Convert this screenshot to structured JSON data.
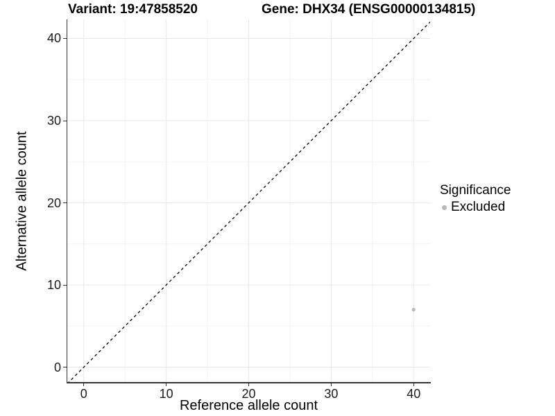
{
  "header": {
    "variant_title": "Variant: 19:47858520",
    "gene_title": "Gene: DHX34 (ENSG00000134815)"
  },
  "legend": {
    "title": "Significance",
    "items": [
      {
        "label": "Excluded",
        "color": "#b9b9b9"
      }
    ]
  },
  "chart_data": {
    "type": "scatter",
    "title_left": "Variant: 19:47858520",
    "title_right": "Gene: DHX34 (ENSG00000134815)",
    "xlabel": "Reference allele count",
    "ylabel": "Alternative allele count",
    "xlim": [
      -2,
      42
    ],
    "ylim": [
      -1.81,
      42.32
    ],
    "x_ticks": [
      0,
      10,
      20,
      30,
      40
    ],
    "y_ticks": [
      0,
      10,
      20,
      30,
      40
    ],
    "x_minor_ticks": [
      5,
      15,
      25,
      35
    ],
    "y_minor_ticks": [
      5,
      15,
      25,
      35
    ],
    "grid": true,
    "legend_position": "right",
    "series": [
      {
        "name": "Excluded",
        "color": "#b9b9b9",
        "points": [
          [
            40,
            7
          ]
        ]
      }
    ],
    "reference_line": {
      "description": "identity line y = x",
      "style": "dashed",
      "color": "#000000",
      "from": [
        -2,
        -2
      ],
      "to": [
        42.32,
        42.32
      ]
    }
  },
  "colors": {
    "background": "#ffffff",
    "axis_line": "#333333",
    "grid_major": "#e8e8e8",
    "grid_minor": "#f3f3f3",
    "text": "#000000",
    "point": "#b9b9b9"
  }
}
